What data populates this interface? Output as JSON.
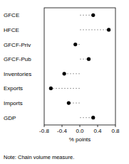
{
  "chart_data": {
    "type": "dot",
    "orientation": "horizontal",
    "categories": [
      "GFCE",
      "HFCE",
      "GFCF-Priv",
      "GFCF-Pub",
      "Inventories",
      "Exports",
      "Imports",
      "GDP"
    ],
    "values": [
      0.3,
      0.65,
      -0.1,
      0.2,
      -0.35,
      -0.65,
      -0.25,
      0.3
    ],
    "color": "#000000",
    "xlim": [
      -0.8,
      0.8
    ],
    "xticks": [
      -0.8,
      -0.4,
      {
        "value": 0,
        "label": "0.0"
      },
      0.4,
      0.8
    ],
    "xlabel": "% points",
    "annotation": "Note: Chain volume measure.",
    "grid": false
  }
}
